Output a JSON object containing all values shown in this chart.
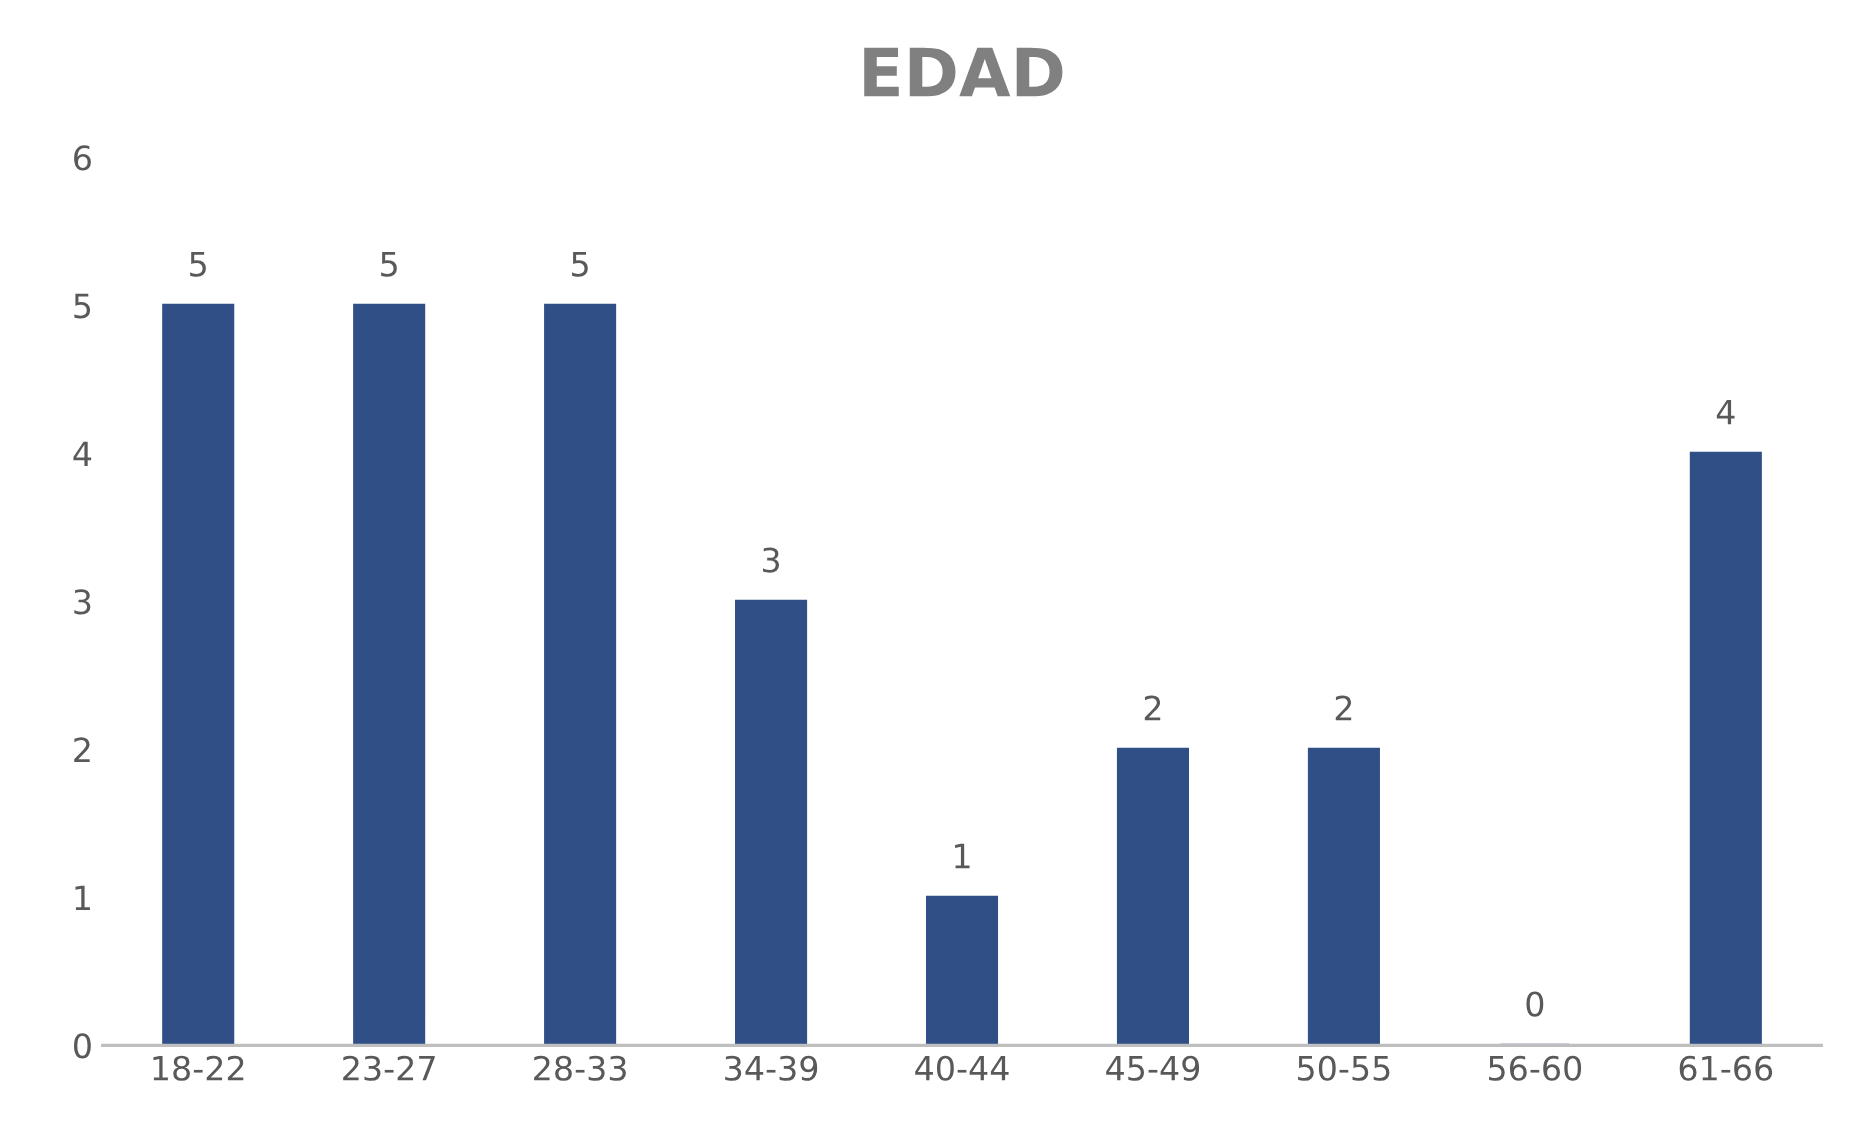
{
  "chart_data": {
    "type": "bar",
    "title": "EDAD",
    "categories": [
      "18-22",
      "23-27",
      "28-33",
      "34-39",
      "40-44",
      "45-49",
      "50-55",
      "56-60",
      "61-66"
    ],
    "values": [
      5,
      5,
      5,
      3,
      1,
      2,
      2,
      0,
      4
    ],
    "color": "#2f4f86",
    "ylim": [
      0,
      6
    ],
    "yticks": [
      0,
      1,
      2,
      3,
      4,
      5,
      6
    ],
    "grid": false,
    "data_labels": true
  }
}
